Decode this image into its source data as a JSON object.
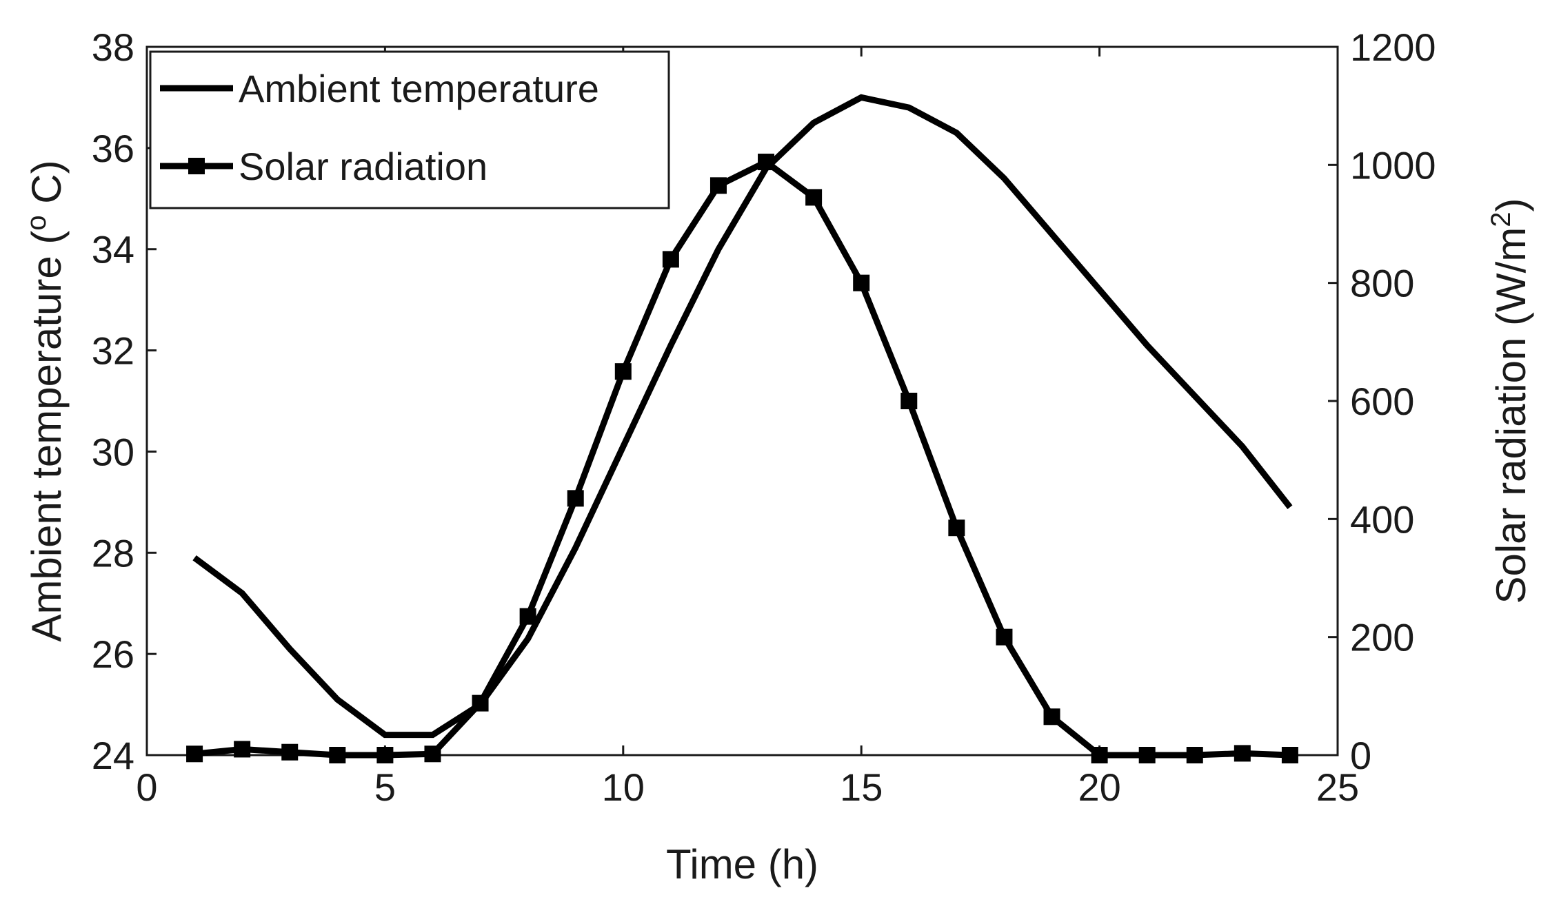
{
  "chart_data": {
    "type": "line",
    "title": "",
    "xlabel": "Time (h)",
    "ylabel_left": {
      "prefix": "Ambient temperature (",
      "superscript": "o",
      "suffix": " C)"
    },
    "ylabel_right": {
      "prefix": "Solar radiation (W/m",
      "superscript": "2",
      "suffix": ")"
    },
    "xlim": [
      0,
      25
    ],
    "ylim_left": [
      24,
      38
    ],
    "ylim_right": [
      0,
      1200
    ],
    "xticks": [
      0,
      5,
      10,
      15,
      20,
      25
    ],
    "yticks_left": [
      24,
      26,
      28,
      30,
      32,
      34,
      36,
      38
    ],
    "yticks_right": [
      0,
      200,
      400,
      600,
      800,
      1000,
      1200
    ],
    "grid": false,
    "legend_position": "top-left",
    "series": [
      {
        "name": "Ambient temperature",
        "axis": "left",
        "marker": "none",
        "x": [
          1,
          2,
          3,
          4,
          5,
          6,
          7,
          8,
          9,
          10,
          11,
          12,
          13,
          14,
          15,
          16,
          17,
          18,
          19,
          20,
          21,
          22,
          23,
          24
        ],
        "values": [
          27.9,
          27.2,
          26.1,
          25.1,
          24.4,
          24.4,
          25.0,
          26.3,
          28.1,
          30.1,
          32.1,
          34.0,
          35.6,
          36.5,
          37.0,
          36.8,
          36.3,
          35.4,
          34.3,
          33.2,
          32.1,
          31.1,
          30.1,
          28.9
        ]
      },
      {
        "name": "Solar radiation",
        "axis": "right",
        "marker": "square",
        "x": [
          1,
          2,
          3,
          4,
          5,
          6,
          7,
          8,
          9,
          10,
          11,
          12,
          13,
          14,
          15,
          16,
          17,
          18,
          19,
          20,
          21,
          22,
          23,
          24
        ],
        "values": [
          2,
          10,
          5,
          0,
          0,
          2,
          88,
          235,
          435,
          650,
          840,
          965,
          1005,
          945,
          800,
          600,
          385,
          200,
          65,
          0,
          0,
          0,
          3,
          0
        ]
      }
    ]
  }
}
